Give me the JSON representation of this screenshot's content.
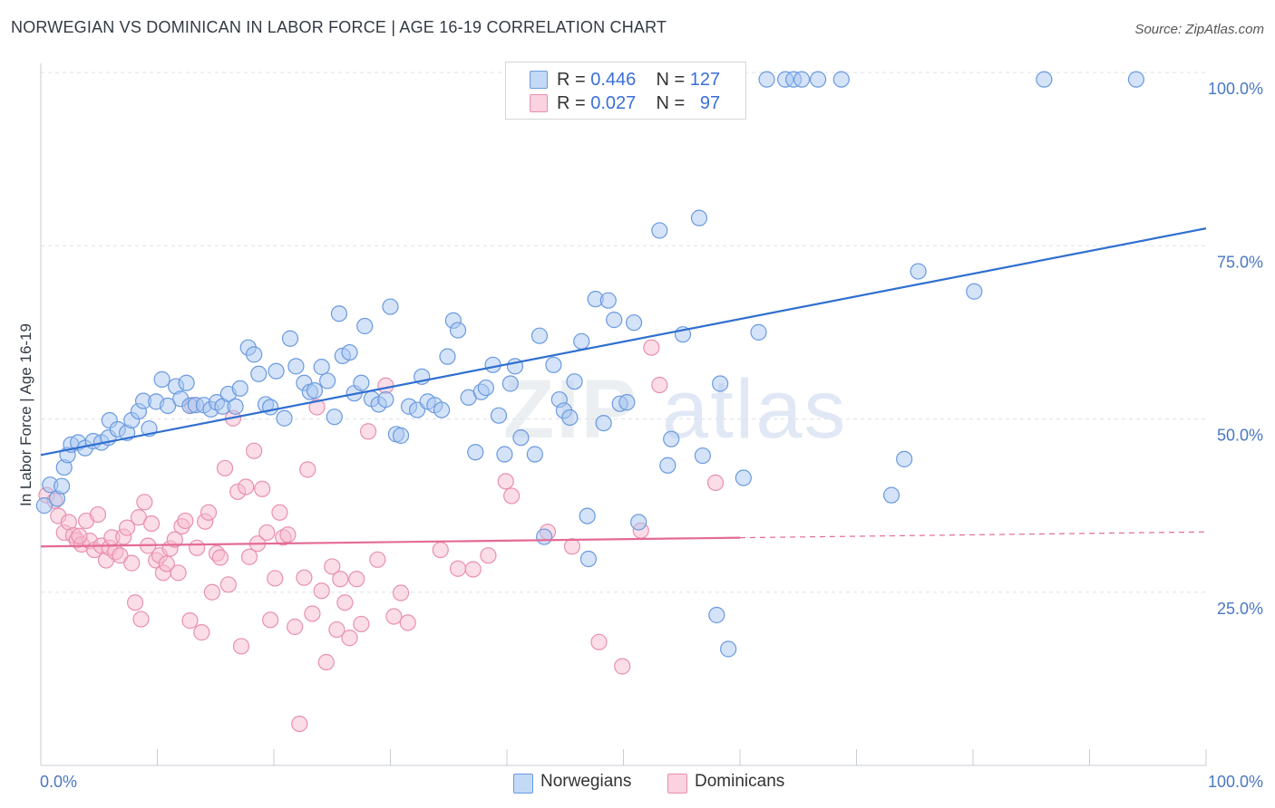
{
  "header": {
    "title": "NORWEGIAN VS DOMINICAN IN LABOR FORCE | AGE 16-19 CORRELATION CHART",
    "source": "Source: ZipAtlas.com"
  },
  "watermark": {
    "zip": "ZIP",
    "atlas": "atlas"
  },
  "legend": {
    "rows": [
      {
        "r_label": "R =",
        "r_value": "0.446",
        "n_label": "N =",
        "n_value": "127",
        "color": "#aac8f2"
      },
      {
        "r_label": "R =",
        "r_value": "0.027",
        "n_label": "N =",
        "n_value": "97",
        "color": "#f7bcd0"
      }
    ]
  },
  "bottom_legend": {
    "norwegians": "Norwegians",
    "dominicans": "Dominicans"
  },
  "colors": {
    "blue_fill": "#aac8f2",
    "blue_stroke": "#6a9ae0",
    "blue_line": "#2f6fd0",
    "pink_fill": "#f7bcd0",
    "pink_stroke": "#e890ae",
    "pink_line": "#e46a96",
    "axis_label": "#4a78c2",
    "grid": "#dde0e6"
  },
  "chart_data": {
    "type": "scatter",
    "title": "NORWEGIAN VS DOMINICAN IN LABOR FORCE | AGE 16-19 CORRELATION CHART",
    "xlabel": "",
    "ylabel": "In Labor Force | Age 16-19",
    "xlim": [
      0,
      100
    ],
    "ylim": [
      0,
      102
    ],
    "x_tick_labels": [
      "0.0%",
      "100.0%"
    ],
    "y_tick_labels": [
      "25.0%",
      "50.0%",
      "75.0%",
      "100.0%"
    ],
    "y_ticks": [
      25,
      50,
      75,
      100
    ],
    "grid": "horizontal dashed",
    "legend_position": "top-center",
    "series": [
      {
        "name": "Norwegians",
        "r": 0.446,
        "n": 127,
        "trend": {
          "x0": 0,
          "y0": 44.8,
          "x1": 100,
          "y1": 77.5,
          "dashed_from": null
        },
        "points": [
          [
            0.3,
            37.5
          ],
          [
            0.8,
            40.5
          ],
          [
            1.4,
            38.5
          ],
          [
            1.8,
            40.3
          ],
          [
            2.0,
            43.0
          ],
          [
            2.3,
            44.8
          ],
          [
            2.6,
            46.3
          ],
          [
            3.2,
            46.6
          ],
          [
            3.8,
            45.8
          ],
          [
            4.5,
            46.8
          ],
          [
            5.2,
            46.6
          ],
          [
            5.8,
            47.3
          ],
          [
            5.9,
            49.8
          ],
          [
            6.6,
            48.5
          ],
          [
            7.4,
            48.0
          ],
          [
            7.8,
            49.8
          ],
          [
            8.4,
            51.1
          ],
          [
            8.8,
            52.6
          ],
          [
            9.3,
            48.6
          ],
          [
            9.9,
            52.5
          ],
          [
            10.4,
            55.7
          ],
          [
            10.9,
            51.9
          ],
          [
            11.6,
            54.7
          ],
          [
            12.0,
            52.9
          ],
          [
            12.5,
            55.2
          ],
          [
            12.8,
            51.9
          ],
          [
            13.3,
            52.0
          ],
          [
            14.0,
            52.0
          ],
          [
            14.6,
            51.4
          ],
          [
            15.1,
            52.4
          ],
          [
            15.6,
            51.8
          ],
          [
            16.1,
            53.6
          ],
          [
            16.7,
            51.8
          ],
          [
            17.1,
            54.4
          ],
          [
            17.8,
            60.3
          ],
          [
            18.3,
            59.3
          ],
          [
            18.7,
            56.5
          ],
          [
            19.3,
            52.1
          ],
          [
            19.7,
            51.7
          ],
          [
            20.2,
            56.9
          ],
          [
            20.9,
            50.1
          ],
          [
            21.4,
            61.6
          ],
          [
            21.9,
            57.6
          ],
          [
            22.6,
            55.2
          ],
          [
            23.1,
            53.9
          ],
          [
            23.5,
            54.1
          ],
          [
            24.1,
            57.5
          ],
          [
            24.6,
            55.5
          ],
          [
            25.2,
            50.3
          ],
          [
            25.6,
            65.2
          ],
          [
            25.9,
            59.1
          ],
          [
            26.5,
            59.6
          ],
          [
            26.9,
            53.7
          ],
          [
            27.5,
            55.2
          ],
          [
            27.8,
            63.4
          ],
          [
            28.4,
            52.9
          ],
          [
            29.0,
            52.1
          ],
          [
            29.6,
            52.8
          ],
          [
            30.0,
            66.2
          ],
          [
            30.5,
            47.8
          ],
          [
            30.9,
            47.6
          ],
          [
            31.6,
            51.8
          ],
          [
            32.3,
            51.3
          ],
          [
            32.7,
            56.1
          ],
          [
            33.2,
            52.5
          ],
          [
            33.8,
            52.0
          ],
          [
            34.4,
            51.3
          ],
          [
            34.9,
            59.0
          ],
          [
            35.4,
            64.2
          ],
          [
            35.8,
            62.8
          ],
          [
            36.7,
            53.1
          ],
          [
            37.3,
            45.2
          ],
          [
            37.8,
            53.9
          ],
          [
            38.2,
            54.5
          ],
          [
            38.8,
            57.8
          ],
          [
            39.3,
            50.5
          ],
          [
            39.8,
            44.9
          ],
          [
            40.3,
            55.1
          ],
          [
            40.7,
            57.6
          ],
          [
            41.2,
            47.3
          ],
          [
            42.4,
            44.9
          ],
          [
            42.8,
            62.0
          ],
          [
            43.2,
            33.0
          ],
          [
            44.0,
            57.8
          ],
          [
            44.5,
            52.8
          ],
          [
            44.9,
            51.2
          ],
          [
            45.4,
            50.2
          ],
          [
            45.8,
            55.4
          ],
          [
            46.4,
            61.2
          ],
          [
            46.9,
            36.0
          ],
          [
            47.0,
            29.8
          ],
          [
            47.6,
            67.3
          ],
          [
            48.3,
            49.4
          ],
          [
            48.7,
            67.1
          ],
          [
            49.2,
            64.3
          ],
          [
            49.7,
            52.2
          ],
          [
            50.3,
            52.4
          ],
          [
            50.9,
            63.9
          ],
          [
            51.3,
            35.1
          ],
          [
            53.1,
            77.2
          ],
          [
            53.8,
            43.3
          ],
          [
            54.1,
            47.1
          ],
          [
            55.1,
            62.2
          ],
          [
            56.5,
            79.0
          ],
          [
            56.8,
            44.7
          ],
          [
            58.0,
            21.7
          ],
          [
            58.3,
            55.1
          ],
          [
            59.0,
            16.8
          ],
          [
            60.3,
            41.5
          ],
          [
            61.6,
            62.5
          ],
          [
            62.3,
            99.0
          ],
          [
            63.9,
            99.0
          ],
          [
            64.6,
            99.0
          ],
          [
            65.3,
            99.0
          ],
          [
            66.7,
            99.0
          ],
          [
            68.7,
            99.0
          ],
          [
            73.0,
            39.0
          ],
          [
            74.1,
            44.2
          ],
          [
            75.3,
            71.3
          ],
          [
            80.1,
            68.4
          ],
          [
            86.1,
            99.0
          ],
          [
            94.0,
            99.0
          ]
        ]
      },
      {
        "name": "Dominicans",
        "r": 0.027,
        "n": 97,
        "trend": {
          "x0": 0,
          "y0": 31.6,
          "x1": 100,
          "y1": 33.7,
          "dashed_from": 60
        },
        "points": [
          [
            0.5,
            39.0
          ],
          [
            1.2,
            38.2
          ],
          [
            1.5,
            36.0
          ],
          [
            2.0,
            33.6
          ],
          [
            2.4,
            35.1
          ],
          [
            2.8,
            33.2
          ],
          [
            3.1,
            32.5
          ],
          [
            3.5,
            31.9
          ],
          [
            3.9,
            35.3
          ],
          [
            4.2,
            32.4
          ],
          [
            4.6,
            31.1
          ],
          [
            4.9,
            36.2
          ],
          [
            5.2,
            31.7
          ],
          [
            5.6,
            29.6
          ],
          [
            5.9,
            31.4
          ],
          [
            6.1,
            32.9
          ],
          [
            6.4,
            30.8
          ],
          [
            6.8,
            30.3
          ],
          [
            7.1,
            33.0
          ],
          [
            7.4,
            34.3
          ],
          [
            7.8,
            29.2
          ],
          [
            8.1,
            23.5
          ],
          [
            8.4,
            35.8
          ],
          [
            8.6,
            21.1
          ],
          [
            8.9,
            38.0
          ],
          [
            9.2,
            31.7
          ],
          [
            9.5,
            34.9
          ],
          [
            9.9,
            29.6
          ],
          [
            10.2,
            30.3
          ],
          [
            10.5,
            27.8
          ],
          [
            10.8,
            29.1
          ],
          [
            11.1,
            31.3
          ],
          [
            11.5,
            32.6
          ],
          [
            11.8,
            27.8
          ],
          [
            12.1,
            34.5
          ],
          [
            12.4,
            35.3
          ],
          [
            12.8,
            20.9
          ],
          [
            13.0,
            52.0
          ],
          [
            13.4,
            31.4
          ],
          [
            13.8,
            19.2
          ],
          [
            14.1,
            35.2
          ],
          [
            14.4,
            36.5
          ],
          [
            14.7,
            25.0
          ],
          [
            15.1,
            30.6
          ],
          [
            15.4,
            30.0
          ],
          [
            15.8,
            42.9
          ],
          [
            16.1,
            26.1
          ],
          [
            16.5,
            50.1
          ],
          [
            16.9,
            39.5
          ],
          [
            17.2,
            17.2
          ],
          [
            17.6,
            40.2
          ],
          [
            17.9,
            30.1
          ],
          [
            18.3,
            45.4
          ],
          [
            18.6,
            32.0
          ],
          [
            19.0,
            39.9
          ],
          [
            19.4,
            33.6
          ],
          [
            19.7,
            21.0
          ],
          [
            20.1,
            27.0
          ],
          [
            20.5,
            36.5
          ],
          [
            20.8,
            32.9
          ],
          [
            21.2,
            33.3
          ],
          [
            21.8,
            20.0
          ],
          [
            22.2,
            6.0
          ],
          [
            22.6,
            27.1
          ],
          [
            22.9,
            42.7
          ],
          [
            23.3,
            21.9
          ],
          [
            23.7,
            51.7
          ],
          [
            24.1,
            25.2
          ],
          [
            24.5,
            14.9
          ],
          [
            25.0,
            28.7
          ],
          [
            25.4,
            19.6
          ],
          [
            25.7,
            26.9
          ],
          [
            26.1,
            23.5
          ],
          [
            26.5,
            18.4
          ],
          [
            27.1,
            26.9
          ],
          [
            27.5,
            20.4
          ],
          [
            28.1,
            48.2
          ],
          [
            28.9,
            29.7
          ],
          [
            29.6,
            54.8
          ],
          [
            30.3,
            21.5
          ],
          [
            30.9,
            24.9
          ],
          [
            31.5,
            20.6
          ],
          [
            34.3,
            31.1
          ],
          [
            35.8,
            28.4
          ],
          [
            37.1,
            28.3
          ],
          [
            38.4,
            30.3
          ],
          [
            39.9,
            41.0
          ],
          [
            40.4,
            38.9
          ],
          [
            43.5,
            33.7
          ],
          [
            47.9,
            17.8
          ],
          [
            49.9,
            14.3
          ],
          [
            51.5,
            33.9
          ],
          [
            52.4,
            60.3
          ],
          [
            53.1,
            54.9
          ],
          [
            57.9,
            40.8
          ],
          [
            3.3,
            33.1
          ],
          [
            45.6,
            31.6
          ]
        ]
      }
    ]
  }
}
